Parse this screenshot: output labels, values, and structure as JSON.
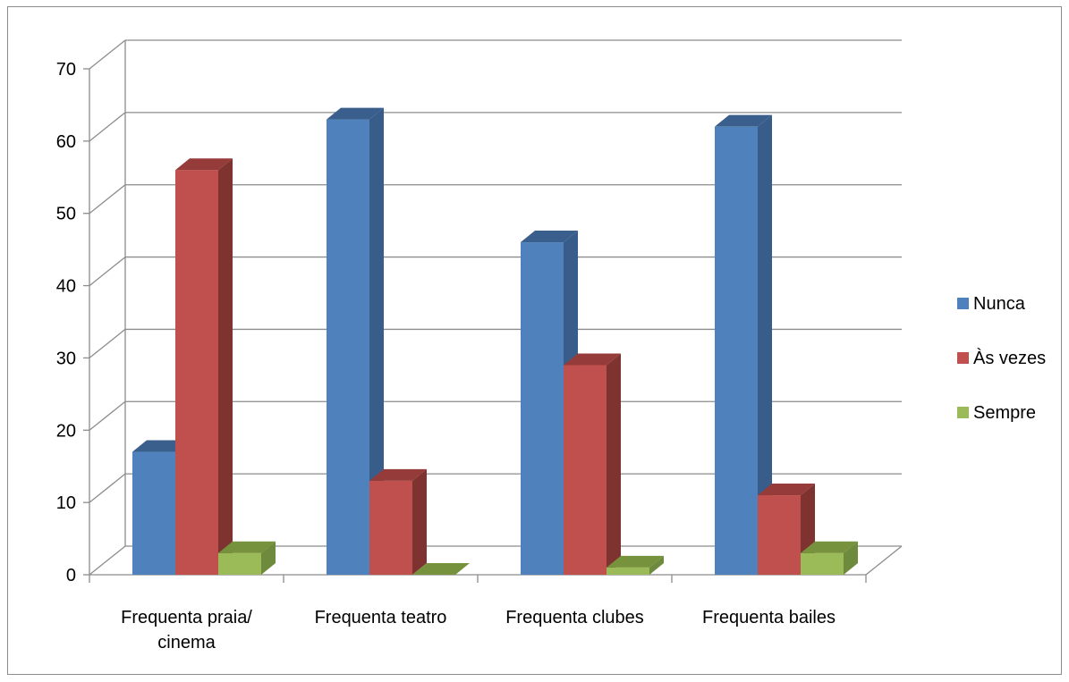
{
  "chart_data": {
    "type": "bar",
    "view": "3d-clustered-column",
    "categories": [
      "Frequenta praia/ cinema",
      "Frequenta teatro",
      "Frequenta clubes",
      "Frequenta bailes"
    ],
    "category_lines": [
      [
        "Frequenta praia/",
        "cinema"
      ],
      [
        "Frequenta teatro"
      ],
      [
        "Frequenta clubes"
      ],
      [
        "Frequenta bailes"
      ]
    ],
    "series": [
      {
        "name": "Nunca",
        "values": [
          17,
          63,
          46,
          62
        ],
        "color": "#4f81bd",
        "side_color": "#385d8a",
        "top_color": "#3a5f8d"
      },
      {
        "name": "Às vezes",
        "values": [
          56,
          13,
          29,
          11
        ],
        "color": "#c0504d",
        "side_color": "#7f3331",
        "top_color": "#953b39"
      },
      {
        "name": "Sempre",
        "values": [
          3,
          0,
          1,
          3
        ],
        "color": "#9bbb59",
        "side_color": "#6e8a3c",
        "top_color": "#76923c"
      }
    ],
    "ylim": [
      0,
      70
    ],
    "y_ticks": [
      0,
      10,
      20,
      30,
      40,
      50,
      60,
      70
    ],
    "grid": true,
    "legend_position": "right",
    "xlabel": "",
    "ylabel": "",
    "title": ""
  }
}
